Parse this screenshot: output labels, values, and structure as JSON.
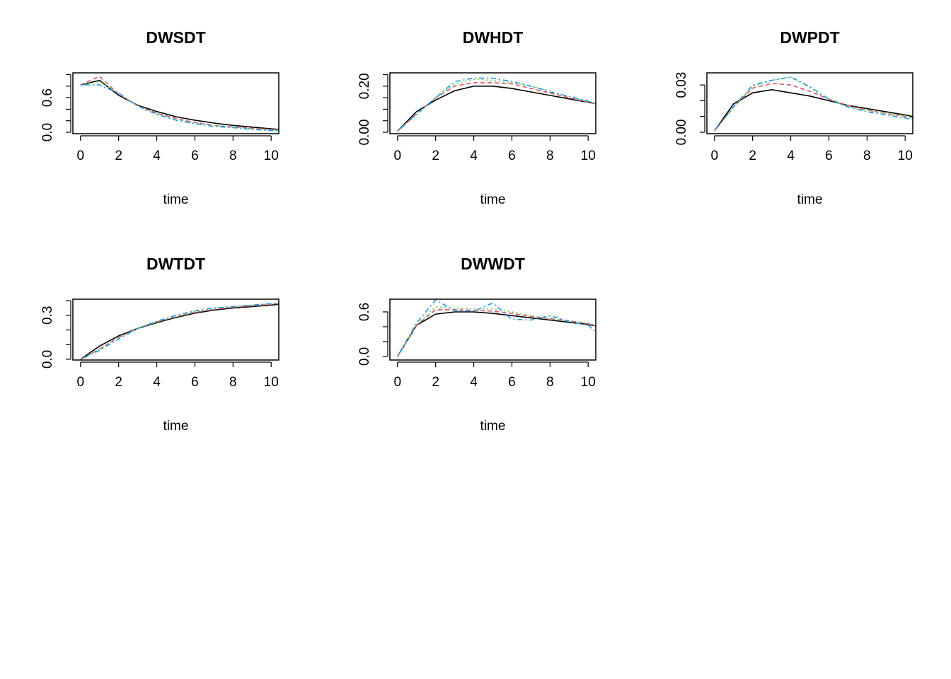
{
  "colors": {
    "black": "#000000",
    "red": "#DF536B",
    "green": "#61D04F",
    "blue": "#2297E6"
  },
  "chart_data": [
    {
      "type": "line",
      "title": "DWSDT",
      "xlabel": "time",
      "ylabel": "",
      "xlim": [
        -0.4,
        10.4
      ],
      "ylim": [
        -0.024,
        1.03
      ],
      "xticks": [
        0,
        2,
        4,
        6,
        8,
        10
      ],
      "xtick_labels": [
        "0",
        "2",
        "4",
        "6",
        "8",
        "10"
      ],
      "yticks": [
        0,
        0.2,
        0.4,
        0.6,
        0.8,
        1.0
      ],
      "ytick_labels": {
        "0": "0.0",
        "3": "0.6"
      },
      "x": [
        0,
        1,
        2,
        3,
        4,
        5,
        6,
        7,
        8,
        9,
        10,
        10.4
      ],
      "series": [
        {
          "name": "black",
          "style": "solid",
          "values": [
            0.82,
            0.9,
            0.64,
            0.47,
            0.36,
            0.27,
            0.21,
            0.16,
            0.12,
            0.09,
            0.06,
            0.05
          ]
        },
        {
          "name": "red",
          "style": "dashed",
          "values": [
            0.82,
            0.97,
            0.66,
            0.46,
            0.33,
            0.24,
            0.17,
            0.12,
            0.09,
            0.07,
            0.05,
            0.04
          ]
        },
        {
          "name": "green",
          "style": "dotted",
          "values": [
            0.82,
            0.88,
            0.67,
            0.46,
            0.32,
            0.22,
            0.16,
            0.12,
            0.09,
            0.06,
            0.04,
            0.035
          ]
        },
        {
          "name": "blue",
          "style": "dotdash",
          "values": [
            0.82,
            0.82,
            0.68,
            0.45,
            0.31,
            0.21,
            0.15,
            0.1,
            0.08,
            0.05,
            0.03,
            0.025
          ]
        }
      ]
    },
    {
      "type": "line",
      "title": "DWHDT",
      "xlabel": "time",
      "ylabel": "",
      "xlim": [
        -0.4,
        10.4
      ],
      "ylim": [
        -0.006,
        0.2577
      ],
      "xticks": [
        0,
        2,
        4,
        6,
        8,
        10
      ],
      "xtick_labels": [
        "0",
        "2",
        "4",
        "6",
        "8",
        "10"
      ],
      "yticks": [
        0,
        0.05,
        0.1,
        0.15,
        0.2,
        0.25
      ],
      "ytick_labels": {
        "0": "0.00",
        "4": "0.20"
      },
      "x": [
        0,
        1,
        2,
        3,
        4,
        5,
        6,
        7,
        8,
        9,
        10,
        10.4
      ],
      "series": [
        {
          "name": "black",
          "style": "solid",
          "values": [
            0.005,
            0.09,
            0.14,
            0.18,
            0.2,
            0.2,
            0.19,
            0.175,
            0.16,
            0.145,
            0.13,
            0.124
          ]
        },
        {
          "name": "red",
          "style": "dashed",
          "values": [
            0.005,
            0.08,
            0.15,
            0.2,
            0.215,
            0.215,
            0.21,
            0.19,
            0.17,
            0.15,
            0.13,
            0.123
          ]
        },
        {
          "name": "green",
          "style": "dotted",
          "values": [
            0.005,
            0.075,
            0.15,
            0.21,
            0.23,
            0.225,
            0.215,
            0.2,
            0.18,
            0.155,
            0.135,
            0.125
          ]
        },
        {
          "name": "blue",
          "style": "dotdash",
          "values": [
            0.005,
            0.08,
            0.15,
            0.22,
            0.235,
            0.235,
            0.22,
            0.2,
            0.175,
            0.155,
            0.135,
            0.122
          ]
        }
      ]
    },
    {
      "type": "line",
      "title": "DWPDT",
      "xlabel": "time",
      "ylabel": "",
      "xlim": [
        -0.4,
        10.4
      ],
      "ylim": [
        -0.0009,
        0.0377
      ],
      "xticks": [
        0,
        2,
        4,
        6,
        8,
        10
      ],
      "xtick_labels": [
        "0",
        "2",
        "4",
        "6",
        "8",
        "10"
      ],
      "yticks": [
        0,
        0.01,
        0.02,
        0.03
      ],
      "ytick_labels": {
        "0": "0.00",
        "3": "0.03"
      },
      "x": [
        0,
        1,
        2,
        3,
        4,
        5,
        6,
        7,
        8,
        9,
        10,
        10.4
      ],
      "series": [
        {
          "name": "black",
          "style": "solid",
          "values": [
            0.001,
            0.018,
            0.025,
            0.027,
            0.025,
            0.023,
            0.02,
            0.017,
            0.015,
            0.013,
            0.011,
            0.01
          ]
        },
        {
          "name": "red",
          "style": "dashed",
          "values": [
            0.001,
            0.016,
            0.028,
            0.031,
            0.03,
            0.026,
            0.021,
            0.017,
            0.014,
            0.012,
            0.01,
            0.009
          ]
        },
        {
          "name": "green",
          "style": "dotted",
          "values": [
            0.001,
            0.016,
            0.029,
            0.033,
            0.035,
            0.028,
            0.021,
            0.016,
            0.014,
            0.012,
            0.01,
            0.009
          ]
        },
        {
          "name": "blue",
          "style": "dotdash",
          "values": [
            0.001,
            0.016,
            0.03,
            0.033,
            0.035,
            0.029,
            0.021,
            0.016,
            0.013,
            0.011,
            0.009,
            0.008
          ]
        }
      ]
    },
    {
      "type": "line",
      "title": "DWTDT",
      "xlabel": "time",
      "ylabel": "",
      "xlim": [
        -0.4,
        10.4
      ],
      "ylim": [
        -0.005,
        0.41
      ],
      "xticks": [
        0,
        2,
        4,
        6,
        8,
        10
      ],
      "xtick_labels": [
        "0",
        "2",
        "4",
        "6",
        "8",
        "10"
      ],
      "yticks": [
        0,
        0.1,
        0.2,
        0.3,
        0.4
      ],
      "ytick_labels": {
        "0": "0.0",
        "3": "0.3"
      },
      "x": [
        0,
        1,
        2,
        3,
        4,
        5,
        6,
        7,
        8,
        9,
        10,
        10.4
      ],
      "series": [
        {
          "name": "black",
          "style": "solid",
          "values": [
            0,
            0.09,
            0.16,
            0.21,
            0.25,
            0.285,
            0.315,
            0.335,
            0.35,
            0.36,
            0.37,
            0.375
          ]
        },
        {
          "name": "red",
          "style": "dashed",
          "values": [
            0,
            0.07,
            0.15,
            0.21,
            0.255,
            0.29,
            0.32,
            0.34,
            0.355,
            0.365,
            0.375,
            0.38
          ]
        },
        {
          "name": "green",
          "style": "dotted",
          "values": [
            0,
            0.07,
            0.15,
            0.21,
            0.255,
            0.29,
            0.325,
            0.345,
            0.36,
            0.37,
            0.378,
            0.382
          ]
        },
        {
          "name": "blue",
          "style": "dotdash",
          "values": [
            0,
            0.06,
            0.14,
            0.21,
            0.26,
            0.3,
            0.33,
            0.35,
            0.36,
            0.37,
            0.38,
            0.385
          ]
        }
      ]
    },
    {
      "type": "line",
      "title": "DWWDT",
      "xlabel": "time",
      "ylabel": "",
      "xlim": [
        -0.4,
        10.4
      ],
      "ylim": [
        -0.048,
        0.771
      ],
      "xticks": [
        0,
        2,
        4,
        6,
        8,
        10
      ],
      "xtick_labels": [
        "0",
        "2",
        "4",
        "6",
        "8",
        "10"
      ],
      "yticks": [
        0,
        0.2,
        0.4,
        0.6
      ],
      "ytick_labels": {
        "0": "0.0",
        "3": "0.6"
      },
      "x": [
        0,
        1,
        2,
        3,
        4,
        5,
        6,
        7,
        8,
        9,
        10,
        10.4
      ],
      "series": [
        {
          "name": "black",
          "style": "solid",
          "values": [
            0,
            0.42,
            0.57,
            0.6,
            0.6,
            0.58,
            0.55,
            0.52,
            0.49,
            0.46,
            0.43,
            0.41
          ]
        },
        {
          "name": "red",
          "style": "dashed",
          "values": [
            0,
            0.42,
            0.63,
            0.63,
            0.62,
            0.61,
            0.58,
            0.54,
            0.51,
            0.48,
            0.44,
            0.41
          ]
        },
        {
          "name": "green",
          "style": "dotted",
          "values": [
            0,
            0.43,
            0.67,
            0.65,
            0.64,
            0.64,
            0.6,
            0.55,
            0.51,
            0.48,
            0.45,
            0.42
          ]
        },
        {
          "name": "blue",
          "style": "dotdash",
          "values": [
            0,
            0.45,
            0.76,
            0.62,
            0.61,
            0.72,
            0.5,
            0.49,
            0.55,
            0.47,
            0.42,
            0.33
          ]
        }
      ]
    }
  ]
}
